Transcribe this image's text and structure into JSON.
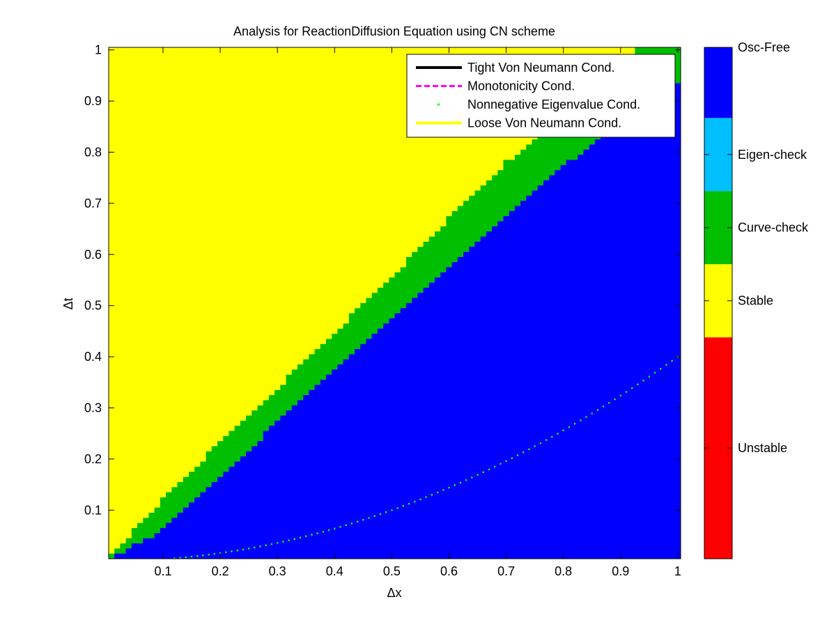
{
  "chart_data": {
    "type": "heatmap",
    "title": "Analysis for ReactionDiffusion Equation using CN scheme",
    "xlabel": "Δx",
    "ylabel": "Δt",
    "xlim": [
      0.005,
      1.005
    ],
    "ylim": [
      0.005,
      1.005
    ],
    "xticks": [
      "0.1",
      "0.2",
      "0.3",
      "0.4",
      "0.5",
      "0.6",
      "0.7",
      "0.8",
      "0.9",
      "1"
    ],
    "yticks": [
      "0.1",
      "0.2",
      "0.3",
      "0.4",
      "0.5",
      "0.6",
      "0.7",
      "0.8",
      "0.9",
      "1"
    ],
    "grid": {
      "dx": 0.01,
      "dt": 0.01,
      "x_range": [
        0.01,
        1.0
      ],
      "t_range": [
        0.01,
        1.0
      ]
    },
    "regions": {
      "stable_to_curvecheck_boundary": {
        "x": [
          0.0,
          0.1,
          0.2,
          0.3,
          0.4,
          0.5,
          0.6,
          0.7,
          0.8,
          0.9,
          0.93,
          1.0
        ],
        "t": [
          0.0,
          0.122,
          0.232,
          0.338,
          0.448,
          0.556,
          0.671,
          0.78,
          0.876,
          0.956,
          1.0,
          1.0
        ]
      },
      "curvecheck_to_oscfree_boundary": {
        "x": [
          0.0,
          0.1,
          0.2,
          0.3,
          0.4,
          0.5,
          0.6,
          0.7,
          0.8,
          0.9,
          1.0
        ],
        "t": [
          0.0,
          0.062,
          0.166,
          0.271,
          0.376,
          0.478,
          0.578,
          0.676,
          0.772,
          0.856,
          0.93
        ]
      }
    },
    "series": [
      {
        "name": "Tight Von Neumann Cond.",
        "style": "solid",
        "color": "#000000",
        "x": [],
        "y": []
      },
      {
        "name": "Monotonicity Cond.",
        "style": "dashed",
        "color": "#ff00ff",
        "x": [],
        "y": []
      },
      {
        "name": "Nonnegative Eigenvalue Cond.",
        "style": "dotted",
        "color": "#00ff00",
        "formula": "Δt = 0.4·Δx²"
      },
      {
        "name": "Loose Von Neumann Cond.",
        "style": "solid",
        "color": "#ffff00",
        "x": [],
        "y": []
      }
    ],
    "legend_position": "top-right",
    "colorbar": {
      "labels": [
        "Unstable",
        "Stable",
        "Curve-check",
        "Eigen-check",
        "Osc-Free"
      ],
      "colors": [
        "#ff0000",
        "#ffff00",
        "#00bf00",
        "#00bfff",
        "#0000ff"
      ],
      "fractions": [
        0.433,
        0.143,
        0.143,
        0.143,
        0.025
      ]
    }
  }
}
